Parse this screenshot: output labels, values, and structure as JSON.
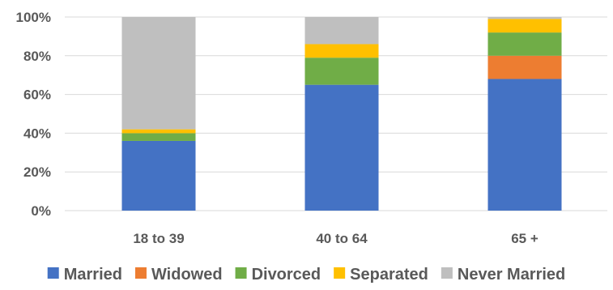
{
  "chart_data": {
    "type": "bar",
    "stacked": true,
    "categories": [
      "18 to 39",
      "40 to 64",
      "65 +"
    ],
    "series": [
      {
        "name": "Married",
        "color": "#4472C4",
        "values": [
          36,
          65,
          68
        ]
      },
      {
        "name": "Widowed",
        "color": "#ED7D31",
        "values": [
          0,
          0,
          12
        ]
      },
      {
        "name": "Divorced",
        "color": "#70AD47",
        "values": [
          4,
          14,
          12
        ]
      },
      {
        "name": "Separated",
        "color": "#FFC000",
        "values": [
          2,
          7,
          7
        ]
      },
      {
        "name": "Never Married",
        "color": "#BFBFBF",
        "values": [
          58,
          14,
          1
        ]
      }
    ],
    "ylim": [
      0,
      100
    ],
    "yticks": [
      "0%",
      "20%",
      "40%",
      "60%",
      "80%",
      "100%"
    ],
    "grid": true,
    "legend_position": "bottom"
  }
}
